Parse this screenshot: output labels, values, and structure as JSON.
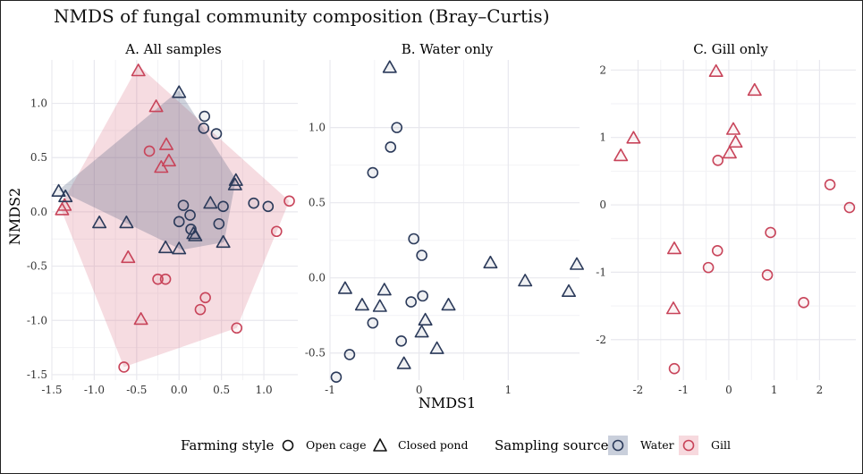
{
  "title": "NMDS of fungal community composition (Bray–Curtis)",
  "xlabel": "NMDS1",
  "ylabel": "NMDS2",
  "colors": {
    "water": "#2b3a5a",
    "gill": "#c8445a",
    "grid": "#e8e8ee"
  },
  "legend": {
    "farming_title": "Farming style",
    "open_label": "Open cage",
    "closed_label": "Closed pond",
    "source_title": "Sampling source",
    "water_label": "Water",
    "gill_label": "Gill"
  },
  "chart_data": [
    {
      "type": "scatter",
      "title": "A. All samples",
      "xlim": [
        -1.5,
        1.4
      ],
      "ylim": [
        -1.55,
        1.4
      ],
      "xticks": [
        -1.5,
        -1.0,
        -0.5,
        0.0,
        0.5,
        1.0
      ],
      "xtick_labels": [
        "-1.5",
        "-1.0",
        "-0.5",
        "0.0",
        "0.5",
        "1.0"
      ],
      "yticks": [
        -1.5,
        -1.0,
        -0.5,
        0.0,
        0.5,
        1.0
      ],
      "ytick_labels": [
        "-1.5",
        "-1.0",
        "-0.5",
        "0.0",
        "0.5",
        "1.0"
      ],
      "hulls": [
        {
          "source": "gill",
          "points": [
            [
              -0.48,
              1.35
            ],
            [
              1.3,
              0.1
            ],
            [
              0.68,
              -1.07
            ],
            [
              -0.65,
              -1.43
            ],
            [
              -1.38,
              0.0
            ],
            [
              -1.4,
              0.05
            ]
          ]
        },
        {
          "source": "water",
          "points": [
            [
              0.0,
              1.12
            ],
            [
              0.67,
              0.3
            ],
            [
              0.53,
              -0.28
            ],
            [
              0.03,
              -0.35
            ],
            [
              -1.42,
              0.2
            ]
          ]
        }
      ],
      "points": [
        {
          "x": -0.48,
          "y": 1.3,
          "shape": "triangle",
          "source": "gill"
        },
        {
          "x": -0.27,
          "y": 0.97,
          "shape": "triangle",
          "source": "gill"
        },
        {
          "x": -0.15,
          "y": 0.62,
          "shape": "triangle",
          "source": "gill"
        },
        {
          "x": -0.35,
          "y": 0.56,
          "shape": "circle",
          "source": "gill"
        },
        {
          "x": -0.12,
          "y": 0.47,
          "shape": "triangle",
          "source": "gill"
        },
        {
          "x": -0.21,
          "y": 0.41,
          "shape": "triangle",
          "source": "gill"
        },
        {
          "x": -1.38,
          "y": 0.02,
          "shape": "triangle",
          "source": "gill"
        },
        {
          "x": -1.35,
          "y": 0.06,
          "shape": "triangle",
          "source": "gill"
        },
        {
          "x": 1.3,
          "y": 0.1,
          "shape": "circle",
          "source": "gill"
        },
        {
          "x": 1.15,
          "y": -0.18,
          "shape": "circle",
          "source": "gill"
        },
        {
          "x": -0.6,
          "y": -0.42,
          "shape": "triangle",
          "source": "gill"
        },
        {
          "x": -0.25,
          "y": -0.62,
          "shape": "circle",
          "source": "gill"
        },
        {
          "x": -0.16,
          "y": -0.62,
          "shape": "circle",
          "source": "gill"
        },
        {
          "x": 0.31,
          "y": -0.79,
          "shape": "circle",
          "source": "gill"
        },
        {
          "x": 0.25,
          "y": -0.9,
          "shape": "circle",
          "source": "gill"
        },
        {
          "x": -0.45,
          "y": -0.99,
          "shape": "triangle",
          "source": "gill"
        },
        {
          "x": 0.68,
          "y": -1.07,
          "shape": "circle",
          "source": "gill"
        },
        {
          "x": -0.65,
          "y": -1.43,
          "shape": "circle",
          "source": "gill"
        },
        {
          "x": 0.0,
          "y": 1.1,
          "shape": "triangle",
          "source": "water"
        },
        {
          "x": 0.3,
          "y": 0.88,
          "shape": "circle",
          "source": "water"
        },
        {
          "x": 0.29,
          "y": 0.77,
          "shape": "circle",
          "source": "water"
        },
        {
          "x": 0.44,
          "y": 0.72,
          "shape": "circle",
          "source": "water"
        },
        {
          "x": -1.42,
          "y": 0.19,
          "shape": "triangle",
          "source": "water"
        },
        {
          "x": -1.34,
          "y": 0.14,
          "shape": "triangle",
          "source": "water"
        },
        {
          "x": 0.67,
          "y": 0.29,
          "shape": "triangle",
          "source": "water"
        },
        {
          "x": 0.66,
          "y": 0.25,
          "shape": "triangle",
          "source": "water"
        },
        {
          "x": 0.37,
          "y": 0.08,
          "shape": "triangle",
          "source": "water"
        },
        {
          "x": 0.05,
          "y": 0.06,
          "shape": "circle",
          "source": "water"
        },
        {
          "x": 0.52,
          "y": 0.05,
          "shape": "circle",
          "source": "water"
        },
        {
          "x": 0.88,
          "y": 0.08,
          "shape": "circle",
          "source": "water"
        },
        {
          "x": 1.05,
          "y": 0.05,
          "shape": "circle",
          "source": "water"
        },
        {
          "x": 0.13,
          "y": -0.03,
          "shape": "circle",
          "source": "water"
        },
        {
          "x": -0.94,
          "y": -0.1,
          "shape": "triangle",
          "source": "water"
        },
        {
          "x": -0.62,
          "y": -0.1,
          "shape": "triangle",
          "source": "water"
        },
        {
          "x": 0.0,
          "y": -0.09,
          "shape": "circle",
          "source": "water"
        },
        {
          "x": 0.47,
          "y": -0.11,
          "shape": "circle",
          "source": "water"
        },
        {
          "x": 0.14,
          "y": -0.16,
          "shape": "circle",
          "source": "water"
        },
        {
          "x": 0.17,
          "y": -0.2,
          "shape": "triangle",
          "source": "water"
        },
        {
          "x": 0.19,
          "y": -0.22,
          "shape": "triangle",
          "source": "water"
        },
        {
          "x": 0.52,
          "y": -0.28,
          "shape": "triangle",
          "source": "water"
        },
        {
          "x": -0.16,
          "y": -0.33,
          "shape": "triangle",
          "source": "water"
        },
        {
          "x": 0.0,
          "y": -0.34,
          "shape": "triangle",
          "source": "water"
        }
      ]
    },
    {
      "type": "scatter",
      "title": "B. Water only",
      "xlim": [
        -1.0,
        1.8
      ],
      "ylim": [
        -0.68,
        1.45
      ],
      "xticks": [
        -1,
        0,
        1
      ],
      "xtick_labels": [
        "-1",
        "0",
        "1"
      ],
      "yticks": [
        -0.5,
        0.0,
        0.5,
        1.0
      ],
      "ytick_labels": [
        "-0.5",
        "0.0",
        "0.5",
        "1.0"
      ],
      "points": [
        {
          "x": -0.33,
          "y": 1.4,
          "shape": "triangle",
          "source": "water"
        },
        {
          "x": -0.25,
          "y": 1.0,
          "shape": "circle",
          "source": "water"
        },
        {
          "x": -0.32,
          "y": 0.87,
          "shape": "circle",
          "source": "water"
        },
        {
          "x": -0.52,
          "y": 0.7,
          "shape": "circle",
          "source": "water"
        },
        {
          "x": -0.06,
          "y": 0.26,
          "shape": "circle",
          "source": "water"
        },
        {
          "x": 0.03,
          "y": 0.15,
          "shape": "circle",
          "source": "water"
        },
        {
          "x": 0.8,
          "y": 0.1,
          "shape": "triangle",
          "source": "water"
        },
        {
          "x": 1.77,
          "y": 0.09,
          "shape": "triangle",
          "source": "water"
        },
        {
          "x": 1.19,
          "y": -0.02,
          "shape": "triangle",
          "source": "water"
        },
        {
          "x": 1.68,
          "y": -0.09,
          "shape": "triangle",
          "source": "water"
        },
        {
          "x": -0.83,
          "y": -0.07,
          "shape": "triangle",
          "source": "water"
        },
        {
          "x": -0.39,
          "y": -0.08,
          "shape": "triangle",
          "source": "water"
        },
        {
          "x": 0.04,
          "y": -0.12,
          "shape": "circle",
          "source": "water"
        },
        {
          "x": -0.09,
          "y": -0.16,
          "shape": "circle",
          "source": "water"
        },
        {
          "x": -0.64,
          "y": -0.18,
          "shape": "triangle",
          "source": "water"
        },
        {
          "x": 0.33,
          "y": -0.18,
          "shape": "triangle",
          "source": "water"
        },
        {
          "x": -0.44,
          "y": -0.19,
          "shape": "triangle",
          "source": "water"
        },
        {
          "x": 0.07,
          "y": -0.28,
          "shape": "triangle",
          "source": "water"
        },
        {
          "x": -0.52,
          "y": -0.3,
          "shape": "circle",
          "source": "water"
        },
        {
          "x": 0.03,
          "y": -0.36,
          "shape": "triangle",
          "source": "water"
        },
        {
          "x": -0.2,
          "y": -0.42,
          "shape": "circle",
          "source": "water"
        },
        {
          "x": 0.2,
          "y": -0.47,
          "shape": "triangle",
          "source": "water"
        },
        {
          "x": -0.78,
          "y": -0.51,
          "shape": "circle",
          "source": "water"
        },
        {
          "x": -0.17,
          "y": -0.57,
          "shape": "triangle",
          "source": "water"
        },
        {
          "x": -0.93,
          "y": -0.66,
          "shape": "circle",
          "source": "water"
        }
      ]
    },
    {
      "type": "scatter",
      "title": "C. Gill only",
      "xlim": [
        -2.6,
        2.8
      ],
      "ylim": [
        -2.6,
        2.15
      ],
      "xticks": [
        -2,
        -1,
        0,
        1,
        2
      ],
      "xtick_labels": [
        "-2",
        "-1",
        "0",
        "1",
        "2"
      ],
      "yticks": [
        -2,
        -1,
        0,
        1,
        2
      ],
      "ytick_labels": [
        "-2",
        "-1",
        "0",
        "1",
        "2"
      ],
      "points": [
        {
          "x": -0.28,
          "y": 1.98,
          "shape": "triangle",
          "source": "gill"
        },
        {
          "x": 0.57,
          "y": 1.7,
          "shape": "triangle",
          "source": "gill"
        },
        {
          "x": 0.1,
          "y": 1.12,
          "shape": "triangle",
          "source": "gill"
        },
        {
          "x": -2.1,
          "y": 0.99,
          "shape": "triangle",
          "source": "gill"
        },
        {
          "x": 0.15,
          "y": 0.93,
          "shape": "triangle",
          "source": "gill"
        },
        {
          "x": 0.02,
          "y": 0.77,
          "shape": "triangle",
          "source": "gill"
        },
        {
          "x": -2.38,
          "y": 0.73,
          "shape": "triangle",
          "source": "gill"
        },
        {
          "x": -0.24,
          "y": 0.66,
          "shape": "circle",
          "source": "gill"
        },
        {
          "x": 2.23,
          "y": 0.3,
          "shape": "circle",
          "source": "gill"
        },
        {
          "x": 2.66,
          "y": -0.04,
          "shape": "circle",
          "source": "gill"
        },
        {
          "x": 0.92,
          "y": -0.41,
          "shape": "circle",
          "source": "gill"
        },
        {
          "x": -1.2,
          "y": -0.65,
          "shape": "triangle",
          "source": "gill"
        },
        {
          "x": -0.25,
          "y": -0.68,
          "shape": "circle",
          "source": "gill"
        },
        {
          "x": -0.45,
          "y": -0.93,
          "shape": "circle",
          "source": "gill"
        },
        {
          "x": 0.85,
          "y": -1.04,
          "shape": "circle",
          "source": "gill"
        },
        {
          "x": 1.65,
          "y": -1.45,
          "shape": "circle",
          "source": "gill"
        },
        {
          "x": -1.22,
          "y": -1.54,
          "shape": "triangle",
          "source": "gill"
        },
        {
          "x": -1.2,
          "y": -2.43,
          "shape": "circle",
          "source": "gill"
        }
      ]
    }
  ]
}
